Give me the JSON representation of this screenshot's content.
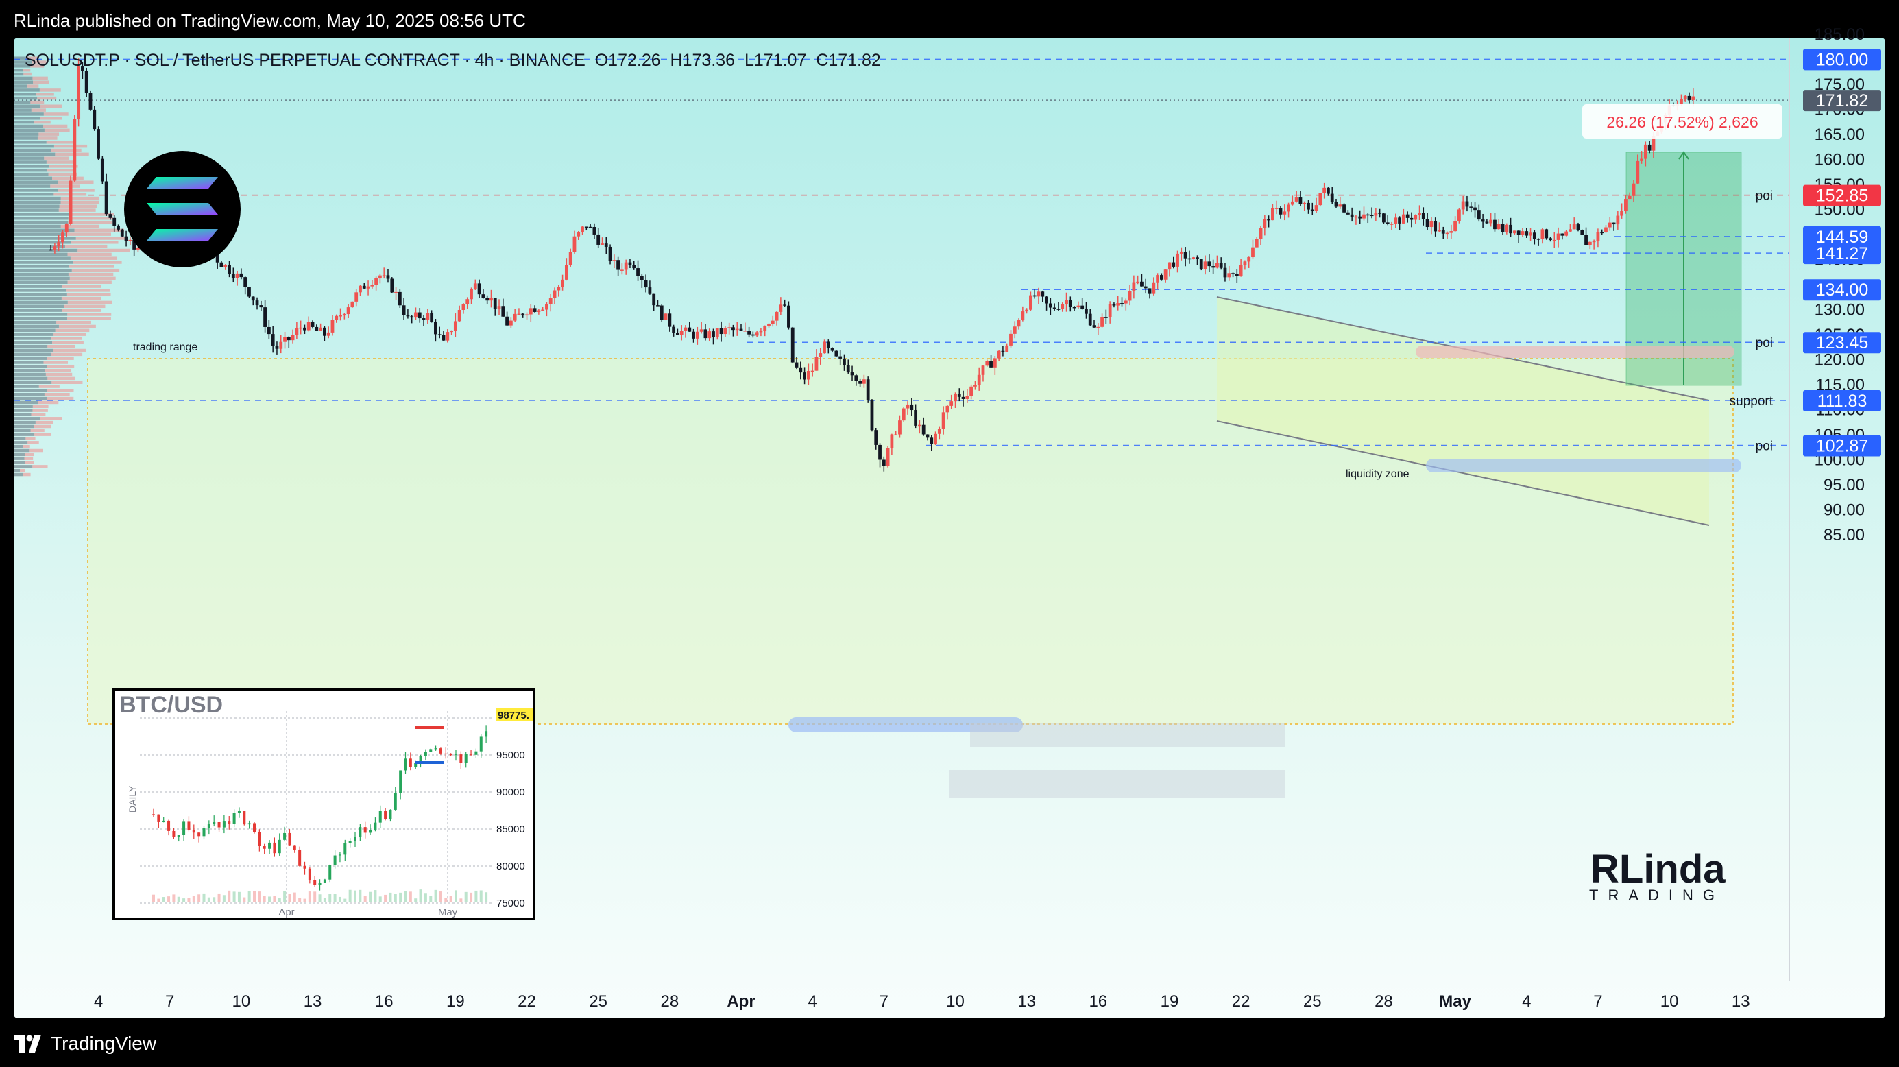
{
  "publish_line": "RLinda published on TradingView.com, May 10, 2025 08:56 UTC",
  "header": {
    "symbol": "SOLUSDT.P · SOL / TetherUS PERPETUAL CONTRACT · 4h · BINANCE",
    "open": "O172.26",
    "high": "H173.36",
    "low": "L171.07",
    "close": "C171.82"
  },
  "footer": {
    "brand": "TradingView"
  },
  "brand_logo": {
    "line1": "RLinda",
    "line2": "TRADING"
  },
  "colors": {
    "up": "#ef5350",
    "down": "#131722",
    "price_tag": "#2962ff",
    "current_tag": "#505b6b",
    "red_tag": "#f23645"
  },
  "chart_data": {
    "type": "candlestick",
    "symbol": "SOLUSDT.P",
    "timeframe": "4h",
    "ylim": [
      82,
      188
    ],
    "y_ticks": [
      "185.00",
      "175.00",
      "170.00",
      "165.00",
      "160.00",
      "155.00",
      "150.00",
      "140.00",
      "130.00",
      "125.00",
      "120.00",
      "115.00",
      "110.00",
      "105.00",
      "100.00",
      "95.00",
      "90.00",
      "85.00"
    ],
    "x_ticks": [
      "4",
      "7",
      "10",
      "13",
      "16",
      "19",
      "22",
      "25",
      "28",
      "Apr",
      "4",
      "7",
      "10",
      "13",
      "16",
      "19",
      "22",
      "25",
      "28",
      "May",
      "4",
      "7",
      "10",
      "13"
    ],
    "x_tick_days": [
      -27,
      -24,
      -21,
      -18,
      -15,
      -12,
      -9,
      -6,
      -3,
      0,
      3,
      6,
      9,
      12,
      15,
      18,
      21,
      24,
      27,
      30,
      33,
      36,
      39,
      42
    ],
    "close_path": [
      [
        -29,
        142
      ],
      [
        -28.3,
        147
      ],
      [
        -27.8,
        182
      ],
      [
        -27.2,
        166
      ],
      [
        -26.6,
        148
      ],
      [
        -25.5,
        142
      ],
      [
        -24.5,
        145
      ],
      [
        -23.8,
        152
      ],
      [
        -23,
        146
      ],
      [
        -22,
        140
      ],
      [
        -21,
        136
      ],
      [
        -20.2,
        130
      ],
      [
        -19.6,
        122
      ],
      [
        -19.0,
        124
      ],
      [
        -18.4,
        127
      ],
      [
        -17.5,
        125
      ],
      [
        -16.5,
        131
      ],
      [
        -15.8,
        135
      ],
      [
        -15.2,
        137
      ],
      [
        -14.6,
        134
      ],
      [
        -14.0,
        128
      ],
      [
        -13.2,
        129
      ],
      [
        -12.5,
        123
      ],
      [
        -11.8,
        130
      ],
      [
        -11.2,
        135
      ],
      [
        -10.5,
        132
      ],
      [
        -9.8,
        127
      ],
      [
        -9.0,
        130
      ],
      [
        -8.2,
        131
      ],
      [
        -7.6,
        135
      ],
      [
        -7.0,
        144
      ],
      [
        -6.5,
        147
      ],
      [
        -6.0,
        144
      ],
      [
        -5.2,
        138
      ],
      [
        -4.6,
        140
      ],
      [
        -4.0,
        135
      ],
      [
        -3.5,
        130
      ],
      [
        -2.8,
        126
      ],
      [
        -2.0,
        125
      ],
      [
        -1.2,
        125
      ],
      [
        -0.5,
        126
      ],
      [
        0.3,
        125
      ],
      [
        1.0,
        127
      ],
      [
        1.6,
        130
      ],
      [
        1.9,
        131
      ],
      [
        2.1,
        120
      ],
      [
        2.6,
        116
      ],
      [
        3.0,
        118
      ],
      [
        3.4,
        123
      ],
      [
        4.0,
        120
      ],
      [
        4.6,
        118
      ],
      [
        5.2,
        115
      ],
      [
        5.6,
        104
      ],
      [
        6.0,
        99
      ],
      [
        6.4,
        105
      ],
      [
        7.0,
        111
      ],
      [
        7.6,
        105
      ],
      [
        8.0,
        103
      ],
      [
        8.5,
        109
      ],
      [
        9.0,
        113
      ],
      [
        9.5,
        113
      ],
      [
        10.0,
        117
      ],
      [
        10.6,
        120
      ],
      [
        11.2,
        123
      ],
      [
        11.8,
        130
      ],
      [
        12.4,
        133
      ],
      [
        13.0,
        130
      ],
      [
        13.7,
        132
      ],
      [
        14.3,
        130
      ],
      [
        15.0,
        126
      ],
      [
        15.4,
        130
      ],
      [
        16.0,
        132
      ],
      [
        16.6,
        135
      ],
      [
        17.2,
        134
      ],
      [
        18.0,
        139
      ],
      [
        18.6,
        141
      ],
      [
        19.2,
        139
      ],
      [
        19.8,
        139
      ],
      [
        20.4,
        137
      ],
      [
        21.0,
        138
      ],
      [
        21.6,
        144
      ],
      [
        22.2,
        149
      ],
      [
        22.8,
        150
      ],
      [
        23.4,
        152
      ],
      [
        23.9,
        149
      ],
      [
        24.4,
        154
      ],
      [
        24.9,
        152
      ],
      [
        25.4,
        150
      ],
      [
        26.0,
        148
      ],
      [
        26.6,
        149
      ],
      [
        27.2,
        148
      ],
      [
        27.8,
        148
      ],
      [
        28.4,
        149
      ],
      [
        29.0,
        147
      ],
      [
        29.6,
        144
      ],
      [
        30.2,
        151
      ],
      [
        30.8,
        149
      ],
      [
        31.4,
        148
      ],
      [
        32.0,
        146
      ],
      [
        32.6,
        146
      ],
      [
        33.2,
        145
      ],
      [
        33.8,
        145
      ],
      [
        34.4,
        144
      ],
      [
        35.0,
        146
      ],
      [
        35.6,
        143
      ],
      [
        36.2,
        146
      ],
      [
        36.8,
        148
      ],
      [
        37.3,
        153
      ],
      [
        37.8,
        161
      ],
      [
        38.2,
        163
      ],
      [
        38.6,
        167
      ],
      [
        39.0,
        171
      ],
      [
        39.4,
        172
      ],
      [
        39.8,
        172
      ],
      [
        40.1,
        171.82
      ]
    ],
    "levels": [
      {
        "price": 180.0,
        "label": "180.00",
        "color": "#2962ff"
      },
      {
        "price": 171.82,
        "label": "171.82",
        "color": "#505b6b"
      },
      {
        "price": 152.85,
        "label": "152.85",
        "color": "#f23645",
        "note": "poi"
      },
      {
        "price": 144.59,
        "label": "144.59",
        "color": "#2962ff"
      },
      {
        "price": 141.27,
        "label": "141.27",
        "color": "#2962ff"
      },
      {
        "price": 134.0,
        "label": "134.00",
        "color": "#2962ff"
      },
      {
        "price": 123.45,
        "label": "123.45",
        "color": "#2962ff",
        "note": "poi"
      },
      {
        "price": 111.83,
        "label": "111.83",
        "color": "#2962ff",
        "note": "support"
      },
      {
        "price": 102.87,
        "label": "102.87",
        "color": "#2962ff",
        "note": "poi"
      }
    ],
    "annotations": {
      "trading_range": "trading range",
      "liquidity_zone": "liquidity zone",
      "measure": "26.26 (17.52%) 2,626"
    }
  },
  "inset": {
    "title": "BTC/USD",
    "side_label": "DAILY",
    "price_label": "98775.",
    "y_ticks": [
      "100000",
      "95000",
      "90000",
      "85000",
      "80000",
      "75000"
    ],
    "x_ticks": [
      "Apr",
      "May"
    ]
  }
}
